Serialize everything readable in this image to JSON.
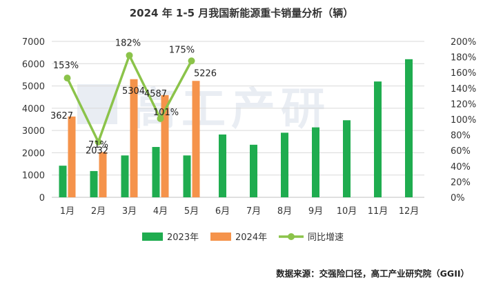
{
  "title": "2024 年 1-5 月我国新能源重卡销量分析（辆）",
  "source": "数据来源：交强险口径，高工产业研究院（GGII）",
  "watermark": "高工产研",
  "colors": {
    "s2023": "#1fac4f",
    "s2024": "#f5934b",
    "yoy": "#8bc34a",
    "grid": "#d9d9d9"
  },
  "chart_data": {
    "type": "bar",
    "categories": [
      "1月",
      "2月",
      "3月",
      "4月",
      "5月",
      "6月",
      "7月",
      "8月",
      "9月",
      "10月",
      "11月",
      "12月"
    ],
    "series": [
      {
        "name": "2023年",
        "kind": "bar",
        "axis": "left",
        "values": [
          1420,
          1180,
          1880,
          2260,
          1880,
          2820,
          2360,
          2900,
          3140,
          3460,
          5200,
          6200
        ]
      },
      {
        "name": "2024年",
        "kind": "bar",
        "axis": "left",
        "values": [
          3627,
          2032,
          5304,
          4587,
          5226,
          null,
          null,
          null,
          null,
          null,
          null,
          null
        ],
        "labels": [
          "3627",
          "2032",
          "5304",
          "4587",
          "5226"
        ]
      },
      {
        "name": "同比增速",
        "kind": "line",
        "axis": "right",
        "values": [
          153,
          71,
          182,
          101,
          175,
          null,
          null,
          null,
          null,
          null,
          null,
          null
        ],
        "labels": [
          "153%",
          "71%",
          "182%",
          "101%",
          "175%"
        ]
      }
    ],
    "ylim_left": [
      0,
      7000
    ],
    "yticks_left": [
      "0",
      "1000",
      "2000",
      "3000",
      "4000",
      "5000",
      "6000",
      "7000"
    ],
    "ylim_right": [
      0,
      200
    ],
    "yticks_right": [
      "0%",
      "20%",
      "40%",
      "60%",
      "80%",
      "100%",
      "120%",
      "140%",
      "160%",
      "180%",
      "200%"
    ],
    "grid": true,
    "legend_position": "bottom"
  }
}
